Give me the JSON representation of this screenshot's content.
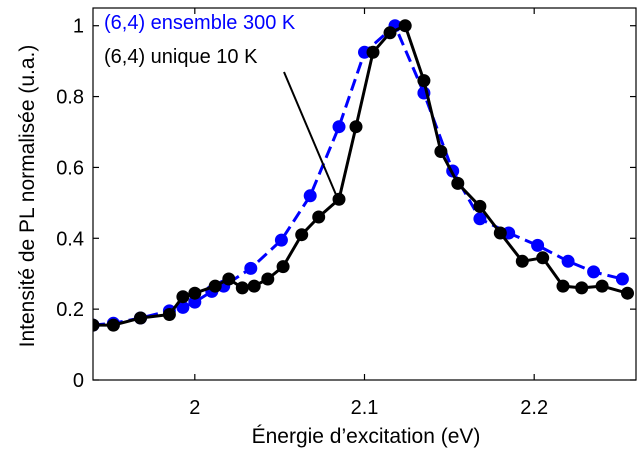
{
  "chart_data": {
    "type": "line",
    "title": "",
    "xlabel": "Énergie d’excitation (eV)",
    "ylabel": "Intensité de PL normalisée (u.a.)",
    "xlim": [
      1.94,
      2.26
    ],
    "ylim": [
      0,
      1.05
    ],
    "xticks": [
      2,
      2.1,
      2.2
    ],
    "xtick_labels": [
      "2",
      "2.1",
      "2.2"
    ],
    "yticks": [
      0,
      0.2,
      0.4,
      0.6,
      0.8,
      1
    ],
    "ytick_labels": [
      "0",
      "0.2",
      "0.4",
      "0.6",
      "0.8",
      "1"
    ],
    "grid": false,
    "series": [
      {
        "name": "(6,4) ensemble 300 K",
        "color": "#0000ff",
        "line_style": "dashed",
        "marker": "circle",
        "x": [
          1.94,
          1.952,
          1.968,
          1.985,
          1.993,
          2.0,
          2.01,
          2.017,
          2.033,
          2.051,
          2.068,
          2.085,
          2.1,
          2.118,
          2.135,
          2.152,
          2.168,
          2.185,
          2.202,
          2.22,
          2.235,
          2.252
        ],
        "y": [
          0.155,
          0.16,
          0.175,
          0.195,
          0.205,
          0.22,
          0.25,
          0.265,
          0.315,
          0.395,
          0.52,
          0.715,
          0.925,
          1.0,
          0.81,
          0.59,
          0.455,
          0.415,
          0.38,
          0.335,
          0.305,
          0.285
        ]
      },
      {
        "name": "(6,4) unique 10 K",
        "color": "#000000",
        "line_style": "solid",
        "marker": "circle",
        "x": [
          1.94,
          1.952,
          1.968,
          1.985,
          1.993,
          2.0,
          2.012,
          2.02,
          2.028,
          2.035,
          2.043,
          2.052,
          2.063,
          2.073,
          2.085,
          2.095,
          2.105,
          2.115,
          2.124,
          2.135,
          2.145,
          2.155,
          2.168,
          2.18,
          2.193,
          2.205,
          2.217,
          2.228,
          2.24,
          2.255
        ],
        "y": [
          0.155,
          0.155,
          0.175,
          0.185,
          0.235,
          0.245,
          0.265,
          0.285,
          0.26,
          0.265,
          0.285,
          0.32,
          0.41,
          0.46,
          0.51,
          0.715,
          0.925,
          0.98,
          1.0,
          0.845,
          0.645,
          0.555,
          0.49,
          0.415,
          0.335,
          0.345,
          0.265,
          0.26,
          0.265,
          0.245
        ]
      }
    ],
    "annotation_target_x": 2.083,
    "annotation_target_y": 0.525
  }
}
